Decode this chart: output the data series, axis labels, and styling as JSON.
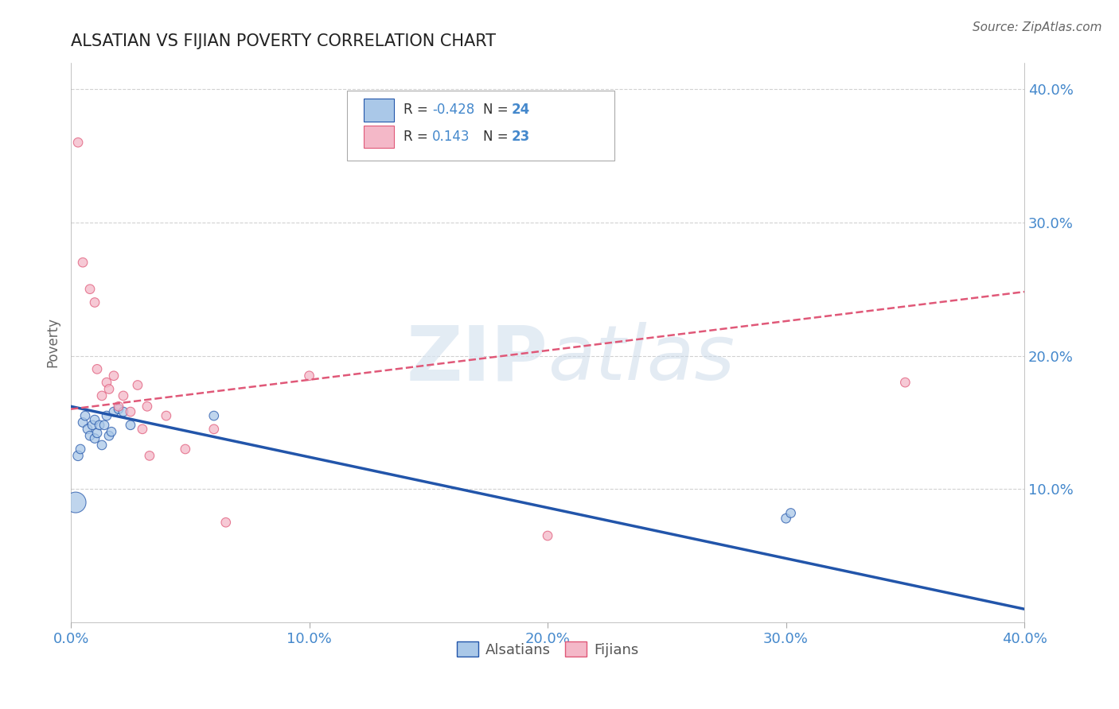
{
  "title": "ALSATIAN VS FIJIAN POVERTY CORRELATION CHART",
  "source": "Source: ZipAtlas.com",
  "ylabel": "Poverty",
  "xlim": [
    0.0,
    0.4
  ],
  "ylim": [
    0.0,
    0.42
  ],
  "xticks": [
    0.0,
    0.1,
    0.2,
    0.3,
    0.4
  ],
  "yticks": [
    0.1,
    0.2,
    0.3,
    0.4
  ],
  "ytick_labels": [
    "10.0%",
    "20.0%",
    "30.0%",
    "40.0%"
  ],
  "xtick_labels": [
    "0.0%",
    "10.0%",
    "20.0%",
    "30.0%",
    "40.0%"
  ],
  "R_alsatian": -0.428,
  "N_alsatian": 24,
  "R_fijian": 0.143,
  "N_fijian": 23,
  "color_alsatian": "#aac8e8",
  "color_alsatian_line": "#2255aa",
  "color_fijian": "#f4b8c8",
  "color_fijian_line": "#e05878",
  "color_tick": "#4488cc",
  "background": "#ffffff",
  "grid_color": "#cccccc",
  "watermark_zip": "ZIP",
  "watermark_atlas": "atlas",
  "alsatian_x": [
    0.002,
    0.003,
    0.004,
    0.005,
    0.006,
    0.007,
    0.008,
    0.009,
    0.01,
    0.01,
    0.011,
    0.012,
    0.013,
    0.014,
    0.015,
    0.016,
    0.017,
    0.018,
    0.02,
    0.022,
    0.025,
    0.06,
    0.3,
    0.302
  ],
  "alsatian_y": [
    0.09,
    0.125,
    0.13,
    0.15,
    0.155,
    0.145,
    0.14,
    0.148,
    0.152,
    0.138,
    0.142,
    0.148,
    0.133,
    0.148,
    0.155,
    0.14,
    0.143,
    0.158,
    0.16,
    0.158,
    0.148,
    0.155,
    0.078,
    0.082
  ],
  "alsatian_sizes": [
    350,
    80,
    70,
    70,
    70,
    70,
    70,
    70,
    70,
    70,
    70,
    70,
    70,
    70,
    70,
    70,
    70,
    70,
    70,
    70,
    70,
    70,
    70,
    70
  ],
  "fijian_x": [
    0.003,
    0.005,
    0.008,
    0.01,
    0.011,
    0.013,
    0.015,
    0.016,
    0.018,
    0.02,
    0.022,
    0.025,
    0.028,
    0.03,
    0.032,
    0.033,
    0.04,
    0.048,
    0.06,
    0.065,
    0.1,
    0.2,
    0.35
  ],
  "fijian_y": [
    0.36,
    0.27,
    0.25,
    0.24,
    0.19,
    0.17,
    0.18,
    0.175,
    0.185,
    0.162,
    0.17,
    0.158,
    0.178,
    0.145,
    0.162,
    0.125,
    0.155,
    0.13,
    0.145,
    0.075,
    0.185,
    0.065,
    0.18
  ],
  "fijian_sizes": [
    70,
    70,
    70,
    70,
    70,
    70,
    70,
    70,
    70,
    70,
    70,
    70,
    70,
    70,
    70,
    70,
    70,
    70,
    70,
    70,
    70,
    70,
    70
  ],
  "trend_als_x0": 0.0,
  "trend_als_y0": 0.162,
  "trend_als_x1": 0.4,
  "trend_als_y1": 0.01,
  "trend_fij_x0": 0.0,
  "trend_fij_y0": 0.16,
  "trend_fij_x1": 0.4,
  "trend_fij_y1": 0.248
}
